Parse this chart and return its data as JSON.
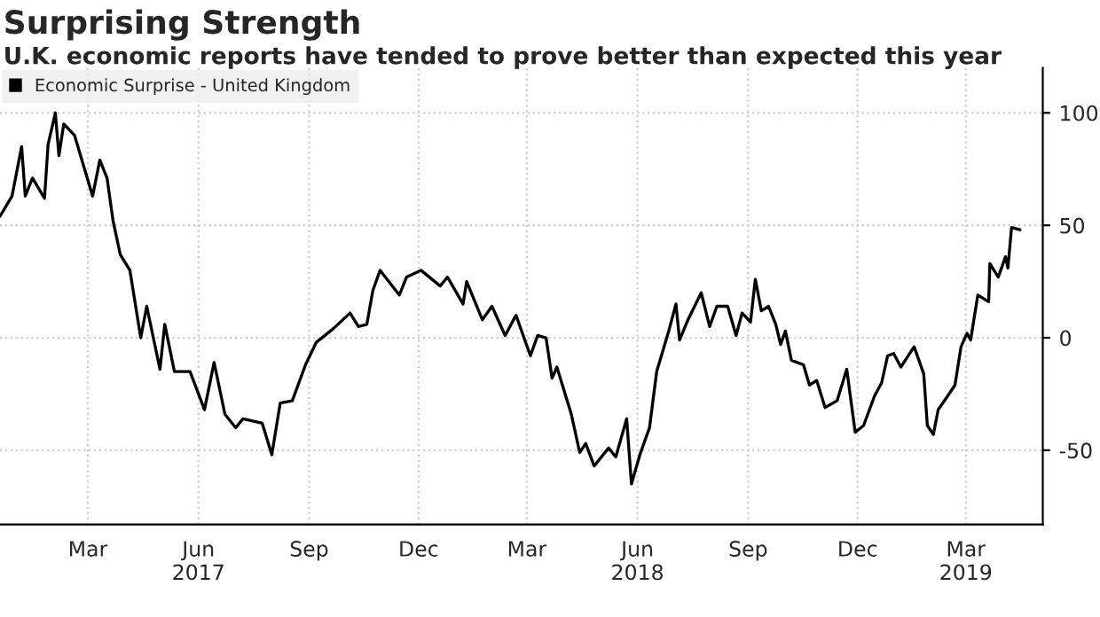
{
  "chart_data": {
    "type": "line",
    "title": "Surprising Strength",
    "subtitle": "U.K. economic reports have tended to prove better than expected this year",
    "x": [
      "2017-01-01",
      "2017-01-11",
      "2017-01-19",
      "2017-01-22",
      "2017-01-28",
      "2017-02-07",
      "2017-02-10",
      "2017-02-16",
      "2017-02-19",
      "2017-02-23",
      "2017-03-04",
      "2017-03-19",
      "2017-03-25",
      "2017-03-31",
      "2017-04-05",
      "2017-04-11",
      "2017-04-19",
      "2017-04-28",
      "2017-05-03",
      "2017-05-14",
      "2017-05-18",
      "2017-05-26",
      "2017-06-08",
      "2017-06-20",
      "2017-06-28",
      "2017-07-07",
      "2017-07-16",
      "2017-07-22",
      "2017-08-07",
      "2017-08-15",
      "2017-08-22",
      "2017-09-01",
      "2017-09-12",
      "2017-09-21",
      "2017-10-05",
      "2017-10-19",
      "2017-10-26",
      "2017-11-02",
      "2017-11-07",
      "2017-11-13",
      "2017-11-29",
      "2017-12-05",
      "2017-12-17",
      "2018-01-02",
      "2018-01-08",
      "2018-01-21",
      "2018-01-24",
      "2018-02-06",
      "2018-02-14",
      "2018-02-25",
      "2018-03-06",
      "2018-03-18",
      "2018-03-24",
      "2018-03-31",
      "2018-04-05",
      "2018-04-09",
      "2018-04-21",
      "2018-04-28",
      "2018-05-03",
      "2018-05-10",
      "2018-05-22",
      "2018-05-28",
      "2018-06-06",
      "2018-06-10",
      "2018-06-17",
      "2018-06-25",
      "2018-07-01",
      "2018-07-11",
      "2018-07-17",
      "2018-07-20",
      "2018-07-27",
      "2018-08-07",
      "2018-08-14",
      "2018-08-20",
      "2018-08-29",
      "2018-09-05",
      "2018-09-10",
      "2018-09-17",
      "2018-09-21",
      "2018-09-26",
      "2018-10-02",
      "2018-10-08",
      "2018-10-12",
      "2018-10-16",
      "2018-10-21",
      "2018-10-31",
      "2018-11-05",
      "2018-11-11",
      "2018-11-18",
      "2018-11-28",
      "2018-12-06",
      "2018-12-13",
      "2018-12-20",
      "2018-12-29",
      "2019-01-04",
      "2019-01-09",
      "2019-01-14",
      "2019-01-20",
      "2019-01-31",
      "2019-02-08",
      "2019-02-11",
      "2019-02-16",
      "2019-02-20",
      "2019-03-01",
      "2019-03-06",
      "2019-03-11",
      "2019-03-16",
      "2019-03-19",
      "2019-03-25",
      "2019-04-03",
      "2019-04-04",
      "2019-04-11",
      "2019-04-17",
      "2019-04-19",
      "2019-04-22",
      "2019-04-29"
    ],
    "series": [
      {
        "name": "Economic Surprise - United Kingdom",
        "color": "#000000",
        "values": [
          54,
          63,
          85,
          63,
          71,
          62,
          86,
          100,
          81,
          95,
          90,
          63,
          79,
          71,
          52,
          37,
          30,
          0,
          14,
          -14,
          6,
          -15,
          -15,
          -32,
          -11,
          -34,
          -40,
          -36,
          -38,
          -52,
          -29,
          -28,
          -12,
          -2,
          4,
          11,
          5,
          6,
          21,
          30,
          19,
          27,
          30,
          23,
          27,
          15,
          25,
          8,
          14,
          1,
          10,
          -8,
          1,
          0,
          -18,
          -13,
          -34,
          -51,
          -47,
          -57,
          -49,
          -53,
          -36,
          -65,
          -52,
          -40,
          -15,
          3,
          15,
          -1,
          8,
          20,
          5,
          14,
          14,
          1,
          11,
          7,
          26,
          12,
          14,
          6,
          -3,
          3,
          -10,
          -12,
          -21,
          -19,
          -31,
          -28,
          -14,
          -42,
          -39,
          -26,
          -20,
          -8,
          -7,
          -13,
          -4,
          -16,
          -39,
          -43,
          -32,
          -25,
          -21,
          -4,
          2,
          -1,
          19,
          16,
          33,
          27,
          36,
          31,
          49,
          48
        ]
      }
    ],
    "xlim": [
      "2017-01-01",
      "2019-05-18"
    ],
    "xticks": [
      {
        "value": "2017-03-15",
        "label": "Mar"
      },
      {
        "value": "2017-06-15",
        "label": "Jun\n2017"
      },
      {
        "value": "2017-09-15",
        "label": "Sep"
      },
      {
        "value": "2017-12-15",
        "label": "Dec"
      },
      {
        "value": "2018-03-15",
        "label": "Mar"
      },
      {
        "value": "2018-06-15",
        "label": "Jun\n2018"
      },
      {
        "value": "2018-09-15",
        "label": "Sep"
      },
      {
        "value": "2018-12-15",
        "label": "Dec"
      },
      {
        "value": "2019-03-15",
        "label": "Mar\n2019"
      }
    ],
    "ylim": [
      -83,
      120
    ],
    "yticks": [
      -50,
      0,
      50,
      100
    ],
    "grid": true,
    "legend": "top left",
    "line_style": "solid"
  }
}
